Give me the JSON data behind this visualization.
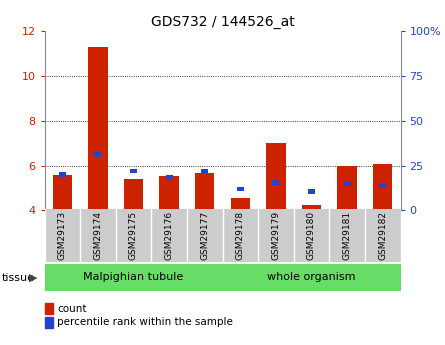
{
  "title": "GDS732 / 144526_at",
  "samples": [
    "GSM29173",
    "GSM29174",
    "GSM29175",
    "GSM29176",
    "GSM29177",
    "GSM29178",
    "GSM29179",
    "GSM29180",
    "GSM29181",
    "GSM29182"
  ],
  "red_tops": [
    5.6,
    11.3,
    5.4,
    5.55,
    5.65,
    4.55,
    7.0,
    4.25,
    6.0,
    6.05
  ],
  "blue_vals": [
    5.6,
    6.5,
    5.75,
    5.5,
    5.75,
    4.95,
    5.25,
    4.85,
    5.2,
    5.1
  ],
  "baseline": 4.0,
  "ylim": [
    4,
    12
  ],
  "yticks": [
    4,
    6,
    8,
    10,
    12
  ],
  "right_yticks": [
    0,
    25,
    50,
    75,
    100
  ],
  "bar_width": 0.55,
  "red_color": "#cc2200",
  "blue_color": "#2244cc",
  "group1_label": "Malpighian tubule",
  "group1_count": 5,
  "group2_label": "whole organism",
  "group2_count": 5,
  "legend_count": "count",
  "legend_pct": "percentile rank within the sample",
  "tissue_label": "tissue",
  "bg_tick": "#cccccc",
  "bg_group": "#66dd66",
  "grid_lines": [
    6,
    8,
    10
  ]
}
